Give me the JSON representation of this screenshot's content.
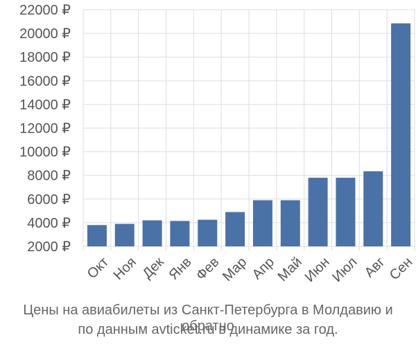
{
  "chart_data": {
    "type": "bar",
    "categories": [
      "Окт",
      "Ноя",
      "Дек",
      "Янв",
      "Фев",
      "Мар",
      "Апр",
      "Май",
      "Июн",
      "Июл",
      "Авг",
      "Сен"
    ],
    "values": [
      3800,
      3900,
      4200,
      4150,
      4250,
      4900,
      5900,
      5900,
      7800,
      7800,
      8350,
      20850
    ],
    "yticks": [
      "2000 ₽",
      "4000 ₽",
      "6000 ₽",
      "8000 ₽",
      "10000 ₽",
      "12000 ₽",
      "14000 ₽",
      "16000 ₽",
      "18000 ₽",
      "20000 ₽",
      "22000 ₽"
    ],
    "ylim": [
      2000,
      22000
    ],
    "grid": true,
    "bar_color": "#4a72a6",
    "title": "",
    "xlabel": "",
    "ylabel": ""
  },
  "caption": {
    "line1": "Цены на авиабилеты из Санкт-Петербурга в Молдавию и обратно",
    "line2": "по данным avticket.ru в динамике за год."
  }
}
